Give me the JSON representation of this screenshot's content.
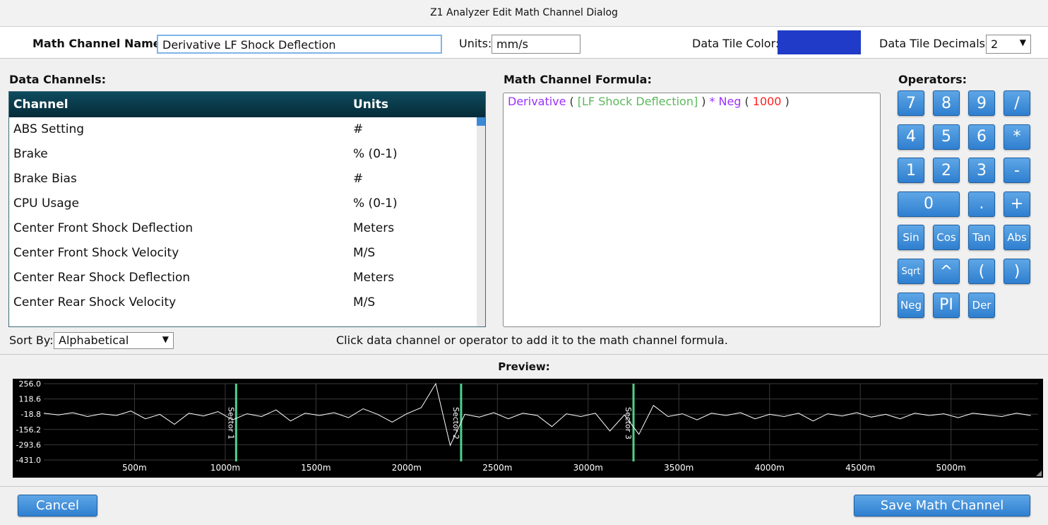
{
  "window": {
    "title": "Z1 Analyzer Edit Math Channel Dialog"
  },
  "form": {
    "name_label": "Math Channel Name:",
    "name_value": "Derivative LF Shock Deflection",
    "units_label": "Units:",
    "units_value": "mm/s",
    "color_label": "Data Tile Color:",
    "tile_color": "#1f3bc7",
    "decimals_label": "Data Tile Decimals:",
    "decimals_value": "2"
  },
  "channels": {
    "label": "Data Channels:",
    "columns": [
      "Channel",
      "Units"
    ],
    "rows": [
      [
        "ABS Setting",
        "#"
      ],
      [
        "Brake",
        "% (0-1)"
      ],
      [
        "Brake Bias",
        "#"
      ],
      [
        "CPU Usage",
        "% (0-1)"
      ],
      [
        "Center Front Shock Deflection",
        "Meters"
      ],
      [
        "Center Front Shock Velocity",
        "M/S"
      ],
      [
        "Center Rear Shock Deflection",
        "Meters"
      ],
      [
        "Center Rear Shock Velocity",
        "M/S"
      ]
    ]
  },
  "sort": {
    "label": "Sort By:",
    "value": "Alphabetical"
  },
  "formula": {
    "label": "Math Channel Formula:",
    "tokens": [
      {
        "text": "Derivative",
        "color": "#9b30ff"
      },
      {
        "text": "(",
        "color": "#333333"
      },
      {
        "text": "[LF Shock Deflection]",
        "color": "#5cb85c"
      },
      {
        "text": ")",
        "color": "#333333"
      },
      {
        "text": "* Neg",
        "color": "#9b30ff"
      },
      {
        "text": "(",
        "color": "#333333"
      },
      {
        "text": "1000",
        "color": "#ff2020"
      },
      {
        "text": ")",
        "color": "#333333"
      }
    ]
  },
  "operators": {
    "label": "Operators:",
    "buttons": [
      "7",
      "8",
      "9",
      "/",
      "4",
      "5",
      "6",
      "*",
      "1",
      "2",
      "3",
      "-",
      "0",
      ".",
      "+",
      "Sin",
      "Cos",
      "Tan",
      "Abs",
      "Sqrt",
      "^",
      "(",
      ")",
      "Neg",
      "PI",
      "Der"
    ]
  },
  "hint": "Click data channel or operator to add it to the math channel formula.",
  "preview": {
    "label": "Preview:",
    "chart": {
      "type": "line",
      "color": "#ffffff",
      "grid": true,
      "xlim": [
        0,
        5480
      ],
      "ylim": [
        -431,
        256
      ],
      "yticks": [
        {
          "value": 256,
          "label": "256.0"
        },
        118.6,
        -18.8,
        -156.2,
        -293.6,
        {
          "value": -431,
          "label": "-431.0"
        }
      ],
      "xticks": [
        {
          "value": 500,
          "label": "500m"
        },
        {
          "value": 1000,
          "label": "1000m"
        },
        {
          "value": 1500,
          "label": "1500m"
        },
        {
          "value": 2000,
          "label": "2000m"
        },
        {
          "value": 2500,
          "label": "2500m"
        },
        {
          "value": 3000,
          "label": "3000m"
        },
        {
          "value": 3500,
          "label": "3500m"
        },
        {
          "value": 4000,
          "label": "4000m"
        },
        {
          "value": 4500,
          "label": "4500m"
        },
        {
          "value": 5000,
          "label": "5000m"
        }
      ],
      "sectors": [
        {
          "x": 1060,
          "label": "Sector 1",
          "color": "#4fd18b"
        },
        {
          "x": 2300,
          "label": "Sector 2",
          "color": "#4fd18b"
        },
        {
          "x": 3250,
          "label": "Sector 3",
          "color": "#4fd18b"
        }
      ],
      "x": [
        0,
        80,
        160,
        240,
        320,
        400,
        480,
        560,
        640,
        720,
        800,
        880,
        960,
        1040,
        1120,
        1200,
        1280,
        1360,
        1440,
        1520,
        1600,
        1680,
        1760,
        1840,
        1920,
        2000,
        2080,
        2160,
        2240,
        2320,
        2400,
        2480,
        2560,
        2640,
        2720,
        2800,
        2880,
        2960,
        3040,
        3120,
        3200,
        3280,
        3360,
        3440,
        3520,
        3600,
        3680,
        3760,
        3840,
        3920,
        4000,
        4080,
        4160,
        4240,
        4320,
        4400,
        4480,
        4560,
        4640,
        4720,
        4800,
        4880,
        4960,
        5040,
        5120,
        5200,
        5280,
        5360,
        5440
      ],
      "values": [
        -10,
        -25,
        -5,
        -40,
        -15,
        -30,
        10,
        -60,
        -20,
        -110,
        -10,
        -35,
        5,
        -70,
        -15,
        -40,
        20,
        -80,
        -10,
        -30,
        -5,
        -50,
        30,
        -20,
        -90,
        -15,
        40,
        256,
        -300,
        -20,
        -45,
        -5,
        -60,
        -10,
        -30,
        -130,
        -15,
        -40,
        -10,
        -170,
        -25,
        -200,
        60,
        -40,
        -15,
        -70,
        -10,
        -30,
        -5,
        -60,
        -20,
        -40,
        -10,
        -80,
        -15,
        -35,
        -5,
        -45,
        -20,
        -60,
        -10,
        -30,
        -15,
        -50,
        -10,
        -25,
        -40,
        -10,
        -30
      ]
    }
  },
  "buttons": {
    "cancel": "Cancel",
    "save": "Save Math Channel"
  }
}
